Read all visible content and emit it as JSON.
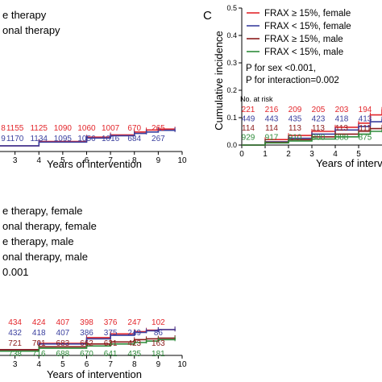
{
  "colors": {
    "red": "#e3262b",
    "blue": "#3a3f9e",
    "darkred": "#8b1a1a",
    "green": "#2e8b3a",
    "axis": "#000000"
  },
  "panel_a": {
    "legend": [
      "e therapy",
      "onal therapy"
    ],
    "xlabel": "Years of intervention",
    "x_ticks": [
      "3",
      "4",
      "5",
      "6",
      "7",
      "8",
      "9",
      "10"
    ],
    "risk_rows": [
      {
        "color": "red",
        "lead": "8",
        "values": [
          "1155",
          "1125",
          "1090",
          "1060",
          "1007",
          "670",
          "265"
        ]
      },
      {
        "color": "blue",
        "lead": "9",
        "values": [
          "1170",
          "1134",
          "1095",
          "1056",
          "1016",
          "684",
          "267"
        ]
      }
    ]
  },
  "panel_b": {
    "legend": [
      "e therapy, female",
      "onal therapy, female",
      "e therapy, male",
      "onal therapy, male"
    ],
    "pvalue": "0.001",
    "xlabel": "Years of intervention",
    "x_ticks": [
      "3",
      "4",
      "5",
      "6",
      "7",
      "8",
      "9",
      "10"
    ],
    "risk_rows": [
      {
        "color": "red",
        "values": [
          "434",
          "424",
          "407",
          "398",
          "376",
          "247",
          "102"
        ]
      },
      {
        "color": "blue",
        "values": [
          "432",
          "418",
          "407",
          "386",
          "375",
          "249",
          "86"
        ]
      },
      {
        "color": "darkred",
        "values": [
          "721",
          "701",
          "683",
          "662",
          "631",
          "423",
          "163"
        ]
      },
      {
        "color": "green",
        "values": [
          "738",
          "716",
          "688",
          "670",
          "641",
          "435",
          "181"
        ]
      }
    ]
  },
  "panel_c": {
    "letter": "C",
    "ylabel": "Cumulative incidence",
    "y_ticks": [
      "0.0",
      "0.1",
      "0.2",
      "0.3",
      "0.4",
      "0.5"
    ],
    "x_ticks": [
      "0",
      "1",
      "2",
      "3",
      "4",
      "5"
    ],
    "xlabel": "Years of interve",
    "legend": [
      {
        "label": "FRAX ≥ 15%, female",
        "color": "red"
      },
      {
        "label": "FRAX < 15%, female",
        "color": "blue"
      },
      {
        "label": "FRAX ≥ 15%, male",
        "color": "darkred"
      },
      {
        "label": "FRAX < 15%, male",
        "color": "green"
      }
    ],
    "p_sex": "P for sex <0.001,",
    "p_interaction": "P for interaction=0.002",
    "risk_title": "No. at risk",
    "risk_rows": [
      {
        "color": "red",
        "values": [
          "221",
          "216",
          "209",
          "205",
          "203",
          "194"
        ]
      },
      {
        "color": "blue",
        "values": [
          "449",
          "443",
          "435",
          "423",
          "418",
          "413"
        ]
      },
      {
        "color": "darkred",
        "values": [
          "114",
          "114",
          "113",
          "113",
          "113",
          "111"
        ]
      },
      {
        "color": "green",
        "values": [
          "929",
          "917",
          "910",
          "900",
          "888",
          "875"
        ]
      }
    ]
  },
  "chart_data": [
    {
      "type": "line",
      "panel": "A",
      "xlabel": "Years of intervention",
      "xlim": [
        2,
        10
      ],
      "ylim": [
        0,
        0.5
      ],
      "series": [
        {
          "name": "e therapy",
          "color": "red",
          "x": [
            2,
            4,
            6,
            7,
            8,
            8.5,
            9,
            9.7
          ],
          "y": [
            0.02,
            0.035,
            0.05,
            0.058,
            0.068,
            0.075,
            0.078,
            0.078
          ]
        },
        {
          "name": "onal therapy",
          "color": "blue",
          "x": [
            2,
            4,
            6,
            7,
            8,
            8.5,
            9,
            9.7
          ],
          "y": [
            0.02,
            0.033,
            0.047,
            0.055,
            0.063,
            0.068,
            0.074,
            0.076
          ]
        }
      ]
    },
    {
      "type": "line",
      "panel": "B",
      "xlabel": "Years of intervention",
      "xlim": [
        2,
        10
      ],
      "ylim": [
        0,
        0.5
      ],
      "series": [
        {
          "name": "e therapy, female",
          "color": "red",
          "x": [
            2,
            4,
            6,
            7,
            8,
            8.5,
            9,
            9.7
          ],
          "y": [
            0.02,
            0.042,
            0.062,
            0.075,
            0.083,
            0.088,
            0.09,
            0.092
          ]
        },
        {
          "name": "onal therapy, female",
          "color": "blue",
          "x": [
            2,
            4,
            6,
            7,
            8,
            8.5,
            9,
            9.7
          ],
          "y": [
            0.02,
            0.04,
            0.058,
            0.07,
            0.08,
            0.086,
            0.09,
            0.092
          ]
        },
        {
          "name": "e therapy, male",
          "color": "darkred",
          "x": [
            2,
            4,
            6,
            7,
            8,
            8.5,
            9,
            9.7
          ],
          "y": [
            0.02,
            0.03,
            0.04,
            0.047,
            0.055,
            0.058,
            0.06,
            0.062
          ]
        },
        {
          "name": "onal therapy, male",
          "color": "green",
          "x": [
            2,
            4,
            6,
            7,
            8,
            8.5,
            9,
            9.7
          ],
          "y": [
            0.015,
            0.025,
            0.033,
            0.04,
            0.045,
            0.05,
            0.055,
            0.058
          ]
        }
      ]
    },
    {
      "type": "line",
      "panel": "C",
      "ylabel": "Cumulative incidence",
      "xlabel": "Years of interve",
      "xlim": [
        0,
        6
      ],
      "ylim": [
        0,
        0.5
      ],
      "series": [
        {
          "name": "FRAX ≥ 15%, female",
          "color": "red",
          "x": [
            0,
            1,
            2,
            3,
            4,
            5,
            5.5,
            6
          ],
          "y": [
            0,
            0.02,
            0.035,
            0.05,
            0.065,
            0.08,
            0.11,
            0.13
          ]
        },
        {
          "name": "FRAX < 15%, female",
          "color": "blue",
          "x": [
            0,
            1,
            2,
            3,
            4,
            5,
            5.5,
            6
          ],
          "y": [
            0,
            0.012,
            0.025,
            0.04,
            0.055,
            0.068,
            0.085,
            0.095
          ]
        },
        {
          "name": "FRAX ≥ 15%, male",
          "color": "darkred",
          "x": [
            0,
            1,
            2,
            3,
            4,
            5,
            5.5,
            6
          ],
          "y": [
            0,
            0.01,
            0.02,
            0.03,
            0.04,
            0.05,
            0.06,
            0.065
          ]
        },
        {
          "name": "FRAX < 15%, male",
          "color": "green",
          "x": [
            0,
            1,
            2,
            3,
            4,
            5,
            5.5,
            6
          ],
          "y": [
            0,
            0.008,
            0.015,
            0.022,
            0.03,
            0.04,
            0.05,
            0.055
          ]
        }
      ]
    }
  ]
}
